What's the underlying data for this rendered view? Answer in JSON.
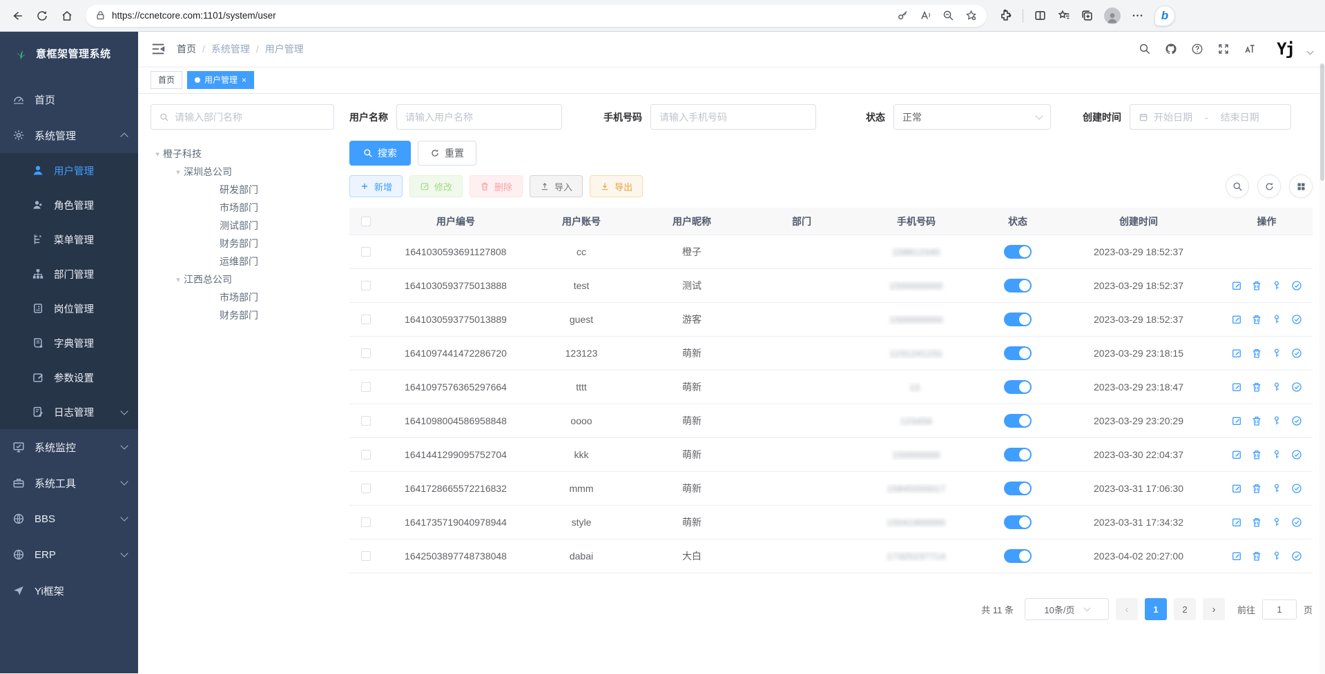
{
  "browser": {
    "url": "https://ccnetcore.com:1101/system/user",
    "nav_icons": [
      "back",
      "refresh",
      "home"
    ],
    "pill_icons": [
      "lock",
      "key",
      "read-aloud",
      "zoom-out",
      "favorite-add"
    ],
    "toolbar_icons": [
      "extensions",
      "split-screen",
      "favorites",
      "collections",
      "profile",
      "more",
      "copilot"
    ]
  },
  "sidebar": {
    "logo_title": "意框架管理系统",
    "menu": [
      {
        "label": "首页",
        "icon": "dashboard-icon"
      },
      {
        "label": "系统管理",
        "icon": "gear-icon",
        "expanded": true,
        "children": [
          {
            "label": "用户管理",
            "icon": "user-icon",
            "active": true
          },
          {
            "label": "角色管理",
            "icon": "role-icon"
          },
          {
            "label": "菜单管理",
            "icon": "menu-icon"
          },
          {
            "label": "部门管理",
            "icon": "dept-icon"
          },
          {
            "label": "岗位管理",
            "icon": "post-icon"
          },
          {
            "label": "字典管理",
            "icon": "dict-icon"
          },
          {
            "label": "参数设置",
            "icon": "param-icon"
          },
          {
            "label": "日志管理",
            "icon": "log-icon",
            "chevron": "down"
          }
        ]
      },
      {
        "label": "系统监控",
        "icon": "monitor-icon",
        "chevron": "down"
      },
      {
        "label": "系统工具",
        "icon": "tool-icon",
        "chevron": "down"
      },
      {
        "label": "BBS",
        "icon": "globe-icon",
        "chevron": "down"
      },
      {
        "label": "ERP",
        "icon": "globe-icon",
        "chevron": "down"
      },
      {
        "label": "Yi框架",
        "icon": "send-icon"
      }
    ]
  },
  "header": {
    "breadcrumb": [
      "首页",
      "系统管理",
      "用户管理"
    ],
    "tools": [
      "search-icon",
      "github-icon",
      "help-icon",
      "fullscreen-icon",
      "font-size-icon"
    ],
    "user_logo": "Yj"
  },
  "tabs": [
    {
      "label": "首页",
      "active": false,
      "closable": false
    },
    {
      "label": "用户管理",
      "active": true,
      "closable": true
    }
  ],
  "filters": {
    "dept_placeholder": "请输入部门名称",
    "username_label": "用户名称",
    "username_placeholder": "请输入用户名称",
    "phone_label": "手机号码",
    "phone_placeholder": "请输入手机号码",
    "status_label": "状态",
    "status_value": "正常",
    "created_label": "创建时间",
    "date_start_placeholder": "开始日期",
    "date_separator": "-",
    "date_end_placeholder": "结束日期"
  },
  "dept_tree": [
    {
      "label": "橙子科技",
      "expanded": true,
      "children": [
        {
          "label": "深圳总公司",
          "expanded": true,
          "children": [
            {
              "label": "研发部门"
            },
            {
              "label": "市场部门"
            },
            {
              "label": "测试部门"
            },
            {
              "label": "财务部门"
            },
            {
              "label": "运维部门"
            }
          ]
        },
        {
          "label": "江西总公司",
          "expanded": true,
          "children": [
            {
              "label": "市场部门"
            },
            {
              "label": "财务部门"
            }
          ]
        }
      ]
    }
  ],
  "toolbar": {
    "search_label": "搜索",
    "reset_label": "重置",
    "add_label": "新增",
    "edit_label": "修改",
    "delete_label": "删除",
    "import_label": "导入",
    "export_label": "导出"
  },
  "table": {
    "columns": [
      "用户编号",
      "用户账号",
      "用户昵称",
      "部门",
      "手机号码",
      "状态",
      "创建时间",
      "操作"
    ],
    "row_actions": [
      "edit-icon",
      "delete-icon",
      "reset-password-icon",
      "check-circle-icon"
    ],
    "rows": [
      {
        "id": "1641030593691127808",
        "account": "cc",
        "nickname": "橙子",
        "dept": "",
        "phone": "158812340",
        "phone_masked": true,
        "status_on": true,
        "created": "2023-03-29 18:52:37",
        "has_actions": false
      },
      {
        "id": "1641030593775013888",
        "account": "test",
        "nickname": "测试",
        "dept": "",
        "phone": "1500000000",
        "phone_masked": true,
        "status_on": true,
        "created": "2023-03-29 18:52:37",
        "has_actions": true
      },
      {
        "id": "1641030593775013889",
        "account": "guest",
        "nickname": "游客",
        "dept": "",
        "phone": "1500000000",
        "phone_masked": true,
        "status_on": true,
        "created": "2023-03-29 18:52:37",
        "has_actions": true
      },
      {
        "id": "1641097441472286720",
        "account": "123123",
        "nickname": "萌新",
        "dept": "",
        "phone": "1231241231",
        "phone_masked": true,
        "status_on": true,
        "created": "2023-03-29 23:18:15",
        "has_actions": true
      },
      {
        "id": "1641097576365297664",
        "account": "tttt",
        "nickname": "萌新",
        "dept": "",
        "phone": "12.",
        "phone_masked": true,
        "status_on": true,
        "created": "2023-03-29 23:18:47",
        "has_actions": true
      },
      {
        "id": "1641098004586958848",
        "account": "oooo",
        "nickname": "萌新",
        "dept": "",
        "phone": "123456",
        "phone_masked": true,
        "status_on": true,
        "created": "2023-03-29 23:20:29",
        "has_actions": true
      },
      {
        "id": "1641441299095752704",
        "account": "kkk",
        "nickname": "萌新",
        "dept": "",
        "phone": "150000000",
        "phone_masked": true,
        "status_on": true,
        "created": "2023-03-30 22:04:37",
        "has_actions": true
      },
      {
        "id": "1641728665572216832",
        "account": "mmm",
        "nickname": "萌新",
        "dept": "",
        "phone": "15845000017",
        "phone_masked": true,
        "status_on": true,
        "created": "2023-03-31 17:06:30",
        "has_actions": true
      },
      {
        "id": "1641735719040978944",
        "account": "style",
        "nickname": "萌新",
        "dept": "",
        "phone": "15041900000",
        "phone_masked": true,
        "status_on": true,
        "created": "2023-03-31 17:34:32",
        "has_actions": true
      },
      {
        "id": "1642503897748738048",
        "account": "dabai",
        "nickname": "大白",
        "dept": "",
        "phone": "17325237714",
        "phone_masked": true,
        "status_on": true,
        "created": "2023-04-02 20:27:00",
        "has_actions": true
      }
    ]
  },
  "pagination": {
    "total_text": "共 11 条",
    "page_size": "10条/页",
    "pages": [
      "1",
      "2"
    ],
    "current_page": "1",
    "goto_label": "前往",
    "goto_value": "1",
    "goto_suffix": "页"
  },
  "colors": {
    "accent": "#409eff",
    "sidebar_bg": "#30405a",
    "submenu_bg": "#273549",
    "logo_green": "#2fc089"
  }
}
